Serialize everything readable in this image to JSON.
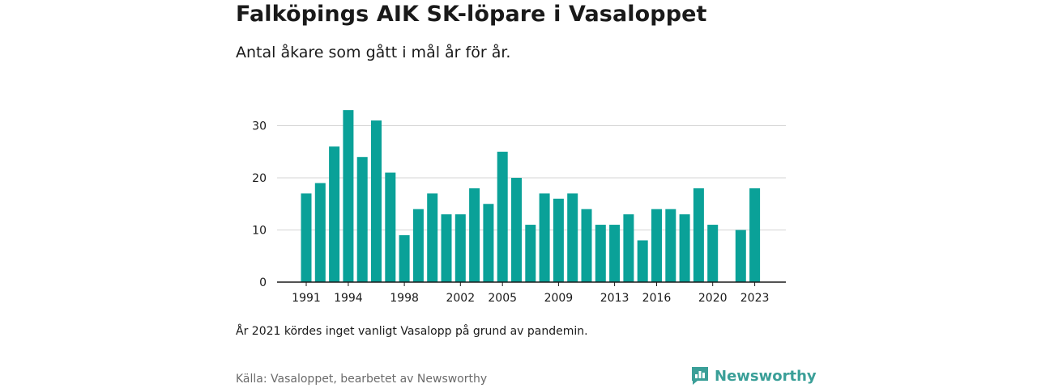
{
  "title": "Falköpings AIK SK-löpare i Vasaloppet",
  "subtitle": "Antal åkare som gått i mål år för år.",
  "note": "År 2021 kördes inget vanligt Vasalopp på grund av pandemin.",
  "source": "Källa: Vasaloppet, bearbetet av Newsworthy",
  "brand": {
    "name": "Newsworthy",
    "icon": "newsworthy-logo-icon",
    "color": "#3a9f98"
  },
  "chart_data": {
    "type": "bar",
    "bar_color": "#0aa198",
    "ylim": [
      0,
      33
    ],
    "grid": true,
    "y_ticks": [
      0,
      10,
      20,
      30
    ],
    "x_ticks": [
      1991,
      1994,
      1998,
      2002,
      2005,
      2009,
      2013,
      2016,
      2020,
      2023
    ],
    "x": [
      1991,
      1992,
      1993,
      1994,
      1995,
      1996,
      1997,
      1998,
      1999,
      2000,
      2001,
      2002,
      2003,
      2004,
      2005,
      2006,
      2007,
      2008,
      2009,
      2010,
      2011,
      2012,
      2013,
      2014,
      2015,
      2016,
      2017,
      2018,
      2019,
      2020,
      2021,
      2022,
      2023
    ],
    "values": [
      17,
      19,
      26,
      33,
      24,
      31,
      21,
      9,
      14,
      17,
      13,
      13,
      18,
      15,
      25,
      20,
      11,
      17,
      16,
      17,
      14,
      11,
      11,
      13,
      8,
      14,
      14,
      13,
      18,
      11,
      null,
      10,
      18
    ]
  }
}
